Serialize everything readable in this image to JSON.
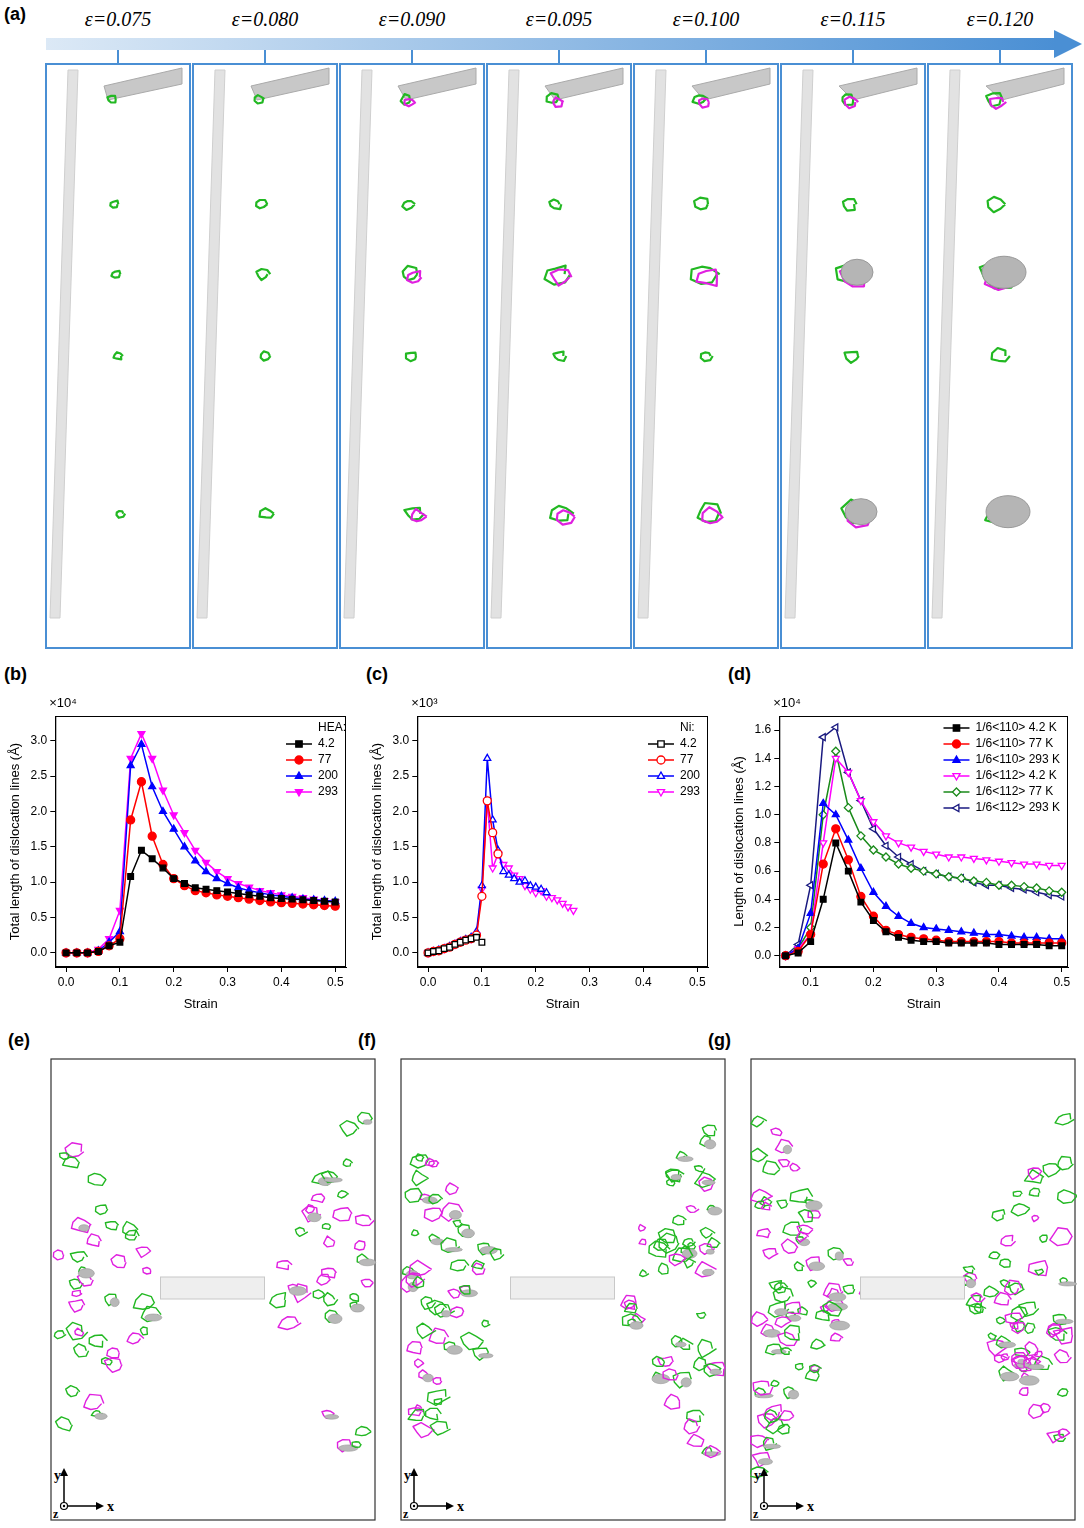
{
  "panel_a": {
    "label": "(a)",
    "strain_labels": [
      "ε=0.075",
      "ε=0.080",
      "ε=0.090",
      "ε=0.095",
      "ε=0.100",
      "ε=0.115",
      "ε=0.120"
    ]
  },
  "chart_data": [
    {
      "panel_label": "(b)",
      "type": "line",
      "x_label": "Strain",
      "y_label": "Total length of dislocation lines (Å)",
      "y_multiplier": "×10⁴",
      "legend_title": "HEA:",
      "legend": "upper right",
      "grid": false,
      "xlim": [
        -0.02,
        0.52
      ],
      "xticks": [
        {
          "value": 0,
          "label": "0.0"
        },
        {
          "value": 0.1,
          "label": "0.1"
        },
        {
          "value": 0.2,
          "label": "0.2"
        },
        {
          "value": 0.3,
          "label": "0.3"
        },
        {
          "value": 0.4,
          "label": "0.4"
        },
        {
          "value": 0.5,
          "label": "0.5"
        }
      ],
      "ylim": [
        -0.2,
        3.35
      ],
      "yticks": [
        {
          "value": 0,
          "label": "0.0"
        },
        {
          "value": 0.5,
          "label": "0.5"
        },
        {
          "value": 1,
          "label": "1.0"
        },
        {
          "value": 1.5,
          "label": "1.5"
        },
        {
          "value": 2,
          "label": "2.0"
        },
        {
          "value": 2.5,
          "label": "2.5"
        },
        {
          "value": 3,
          "label": "3.0"
        }
      ],
      "x": [
        0,
        0.02,
        0.04,
        0.06,
        0.08,
        0.1,
        0.12,
        0.14,
        0.16,
        0.18,
        0.2,
        0.22,
        0.24,
        0.26,
        0.28,
        0.3,
        0.32,
        0.34,
        0.36,
        0.38,
        0.4,
        0.42,
        0.44,
        0.46,
        0.48,
        0.5
      ],
      "series": [
        {
          "name": "4.2",
          "color": "#000000",
          "marker": "square",
          "values": [
            0,
            0,
            0,
            0.02,
            0.1,
            0.15,
            1.08,
            1.45,
            1.33,
            1.2,
            1.05,
            0.98,
            0.92,
            0.9,
            0.88,
            0.86,
            0.84,
            0.82,
            0.8,
            0.78,
            0.77,
            0.76,
            0.75,
            0.74,
            0.73,
            0.72
          ]
        },
        {
          "name": "77",
          "color": "#ff0000",
          "marker": "circle",
          "values": [
            0,
            0,
            0,
            0.02,
            0.1,
            0.2,
            1.88,
            2.42,
            1.65,
            1.25,
            1.05,
            0.95,
            0.88,
            0.85,
            0.82,
            0.8,
            0.78,
            0.76,
            0.74,
            0.72,
            0.71,
            0.7,
            0.69,
            0.68,
            0.67,
            0.66
          ]
        },
        {
          "name": "200",
          "color": "#0000ff",
          "marker": "triangle",
          "values": [
            0,
            0,
            0,
            0.03,
            0.15,
            0.3,
            2.65,
            2.95,
            2.35,
            2.0,
            1.75,
            1.5,
            1.3,
            1.15,
            1.05,
            0.98,
            0.92,
            0.88,
            0.85,
            0.82,
            0.8,
            0.78,
            0.76,
            0.75,
            0.74,
            0.73
          ]
        },
        {
          "name": "293",
          "color": "#ff00ff",
          "marker": "triangle-down",
          "values": [
            0,
            0,
            0,
            0.05,
            0.2,
            0.6,
            2.75,
            3.1,
            2.75,
            2.3,
            1.95,
            1.7,
            1.45,
            1.28,
            1.15,
            1.05,
            0.98,
            0.93,
            0.88,
            0.85,
            0.82,
            0.8,
            0.78,
            0.76,
            0.74,
            0.72
          ]
        }
      ]
    },
    {
      "panel_label": "(c)",
      "type": "line",
      "x_label": "Strain",
      "y_label": "Total length of dislocation lines (Å)",
      "y_multiplier": "×10³",
      "legend_title": "Ni:",
      "legend": "upper right",
      "grid": false,
      "xlim": [
        -0.02,
        0.52
      ],
      "xticks": [
        {
          "value": 0,
          "label": "0.0"
        },
        {
          "value": 0.1,
          "label": "0.1"
        },
        {
          "value": 0.2,
          "label": "0.2"
        },
        {
          "value": 0.3,
          "label": "0.3"
        },
        {
          "value": 0.4,
          "label": "0.4"
        },
        {
          "value": 0.5,
          "label": "0.5"
        }
      ],
      "ylim": [
        -0.2,
        3.35
      ],
      "yticks": [
        {
          "value": 0,
          "label": "0.0"
        },
        {
          "value": 0.5,
          "label": "0.5"
        },
        {
          "value": 1,
          "label": "1.0"
        },
        {
          "value": 1.5,
          "label": "1.5"
        },
        {
          "value": 2,
          "label": "2.0"
        },
        {
          "value": 2.5,
          "label": "2.5"
        },
        {
          "value": 3,
          "label": "3.0"
        }
      ],
      "series": [
        {
          "name": "4.2",
          "color": "#000000",
          "marker": "square-open",
          "x": [
            0,
            0.01,
            0.02,
            0.03,
            0.04,
            0.05,
            0.06,
            0.07,
            0.08,
            0.09,
            0.1
          ],
          "values": [
            0,
            0.02,
            0.03,
            0.06,
            0.08,
            0.12,
            0.15,
            0.18,
            0.2,
            0.22,
            0.15
          ]
        },
        {
          "name": "77",
          "color": "#ff0000",
          "marker": "circle-open",
          "x": [
            0,
            0.01,
            0.02,
            0.03,
            0.04,
            0.05,
            0.06,
            0.07,
            0.08,
            0.09,
            0.1,
            0.11,
            0.12,
            0.13
          ],
          "values": [
            0,
            0.02,
            0.03,
            0.06,
            0.08,
            0.12,
            0.15,
            0.18,
            0.2,
            0.25,
            0.8,
            2.15,
            1.7,
            1.4
          ]
        },
        {
          "name": "200",
          "color": "#0000ff",
          "marker": "triangle-open",
          "x": [
            0,
            0.01,
            0.02,
            0.03,
            0.04,
            0.05,
            0.06,
            0.07,
            0.08,
            0.09,
            0.1,
            0.11,
            0.12,
            0.13,
            0.14,
            0.15,
            0.16,
            0.17,
            0.18,
            0.19,
            0.2,
            0.21,
            0.22
          ],
          "values": [
            0,
            0.02,
            0.04,
            0.06,
            0.09,
            0.12,
            0.16,
            0.19,
            0.22,
            0.3,
            0.95,
            2.75,
            1.88,
            1.45,
            1.15,
            1.1,
            1.05,
            1.0,
            1.02,
            0.95,
            0.93,
            0.9,
            0.85
          ]
        },
        {
          "name": "293",
          "color": "#ff00ff",
          "marker": "triangle-down-open",
          "x": [
            0,
            0.01,
            0.02,
            0.03,
            0.04,
            0.05,
            0.06,
            0.07,
            0.08,
            0.09,
            0.1,
            0.11,
            0.12,
            0.13,
            0.14,
            0.15,
            0.16,
            0.17,
            0.18,
            0.19,
            0.2,
            0.21,
            0.22,
            0.23,
            0.24,
            0.25,
            0.26,
            0.27
          ],
          "values": [
            0,
            0.02,
            0.04,
            0.06,
            0.09,
            0.12,
            0.16,
            0.19,
            0.2,
            0.25,
            0.9,
            2.15,
            1.2,
            1.4,
            1.25,
            1.2,
            1.1,
            1.05,
            0.95,
            0.9,
            0.85,
            0.88,
            0.8,
            0.78,
            0.75,
            0.7,
            0.65,
            0.6
          ]
        }
      ]
    },
    {
      "panel_label": "(d)",
      "type": "line",
      "x_label": "Strain",
      "y_label": "Length of dislocation lines (Å)",
      "y_multiplier": "×10⁴",
      "legend": "upper right",
      "grid": false,
      "xlim": [
        0.05,
        0.51
      ],
      "xticks": [
        {
          "value": 0.1,
          "label": "0.1"
        },
        {
          "value": 0.2,
          "label": "0.2"
        },
        {
          "value": 0.3,
          "label": "0.3"
        },
        {
          "value": 0.4,
          "label": "0.4"
        },
        {
          "value": 0.5,
          "label": "0.5"
        }
      ],
      "ylim": [
        -0.08,
        1.7
      ],
      "yticks": [
        {
          "value": 0,
          "label": "0.0"
        },
        {
          "value": 0.2,
          "label": "0.2"
        },
        {
          "value": 0.4,
          "label": "0.4"
        },
        {
          "value": 0.6,
          "label": "0.6"
        },
        {
          "value": 0.8,
          "label": "0.8"
        },
        {
          "value": 1,
          "label": "1.0"
        },
        {
          "value": 1.2,
          "label": "1.2"
        },
        {
          "value": 1.4,
          "label": "1.4"
        },
        {
          "value": 1.6,
          "label": "1.6"
        }
      ],
      "x": [
        0.06,
        0.08,
        0.1,
        0.12,
        0.14,
        0.16,
        0.18,
        0.2,
        0.22,
        0.24,
        0.26,
        0.28,
        0.3,
        0.32,
        0.34,
        0.36,
        0.38,
        0.4,
        0.42,
        0.44,
        0.46,
        0.48,
        0.5
      ],
      "series": [
        {
          "name": "1/6<110> 4.2 K",
          "color": "#000000",
          "marker": "square",
          "values": [
            0,
            0.02,
            0.1,
            0.4,
            0.8,
            0.6,
            0.38,
            0.25,
            0.17,
            0.13,
            0.11,
            0.1,
            0.1,
            0.09,
            0.09,
            0.09,
            0.09,
            0.08,
            0.08,
            0.08,
            0.08,
            0.07,
            0.07
          ]
        },
        {
          "name": "1/6<110> 77 K",
          "color": "#ff0000",
          "marker": "circle",
          "values": [
            0,
            0.03,
            0.15,
            0.65,
            0.9,
            0.68,
            0.42,
            0.28,
            0.18,
            0.15,
            0.13,
            0.12,
            0.11,
            0.1,
            0.1,
            0.1,
            0.1,
            0.1,
            0.09,
            0.09,
            0.09,
            0.09,
            0.09
          ]
        },
        {
          "name": "1/6<110> 293 K",
          "color": "#0000ff",
          "marker": "triangle",
          "values": [
            0,
            0.05,
            0.3,
            1.08,
            1.0,
            0.82,
            0.62,
            0.45,
            0.35,
            0.28,
            0.23,
            0.2,
            0.19,
            0.18,
            0.17,
            0.16,
            0.15,
            0.15,
            0.14,
            0.13,
            0.13,
            0.12,
            0.12
          ]
        },
        {
          "name": "1/6<112> 4.2 K",
          "color": "#ff00ff",
          "marker": "triangle-down-open",
          "values": [
            0,
            0.05,
            0.15,
            0.8,
            1.4,
            1.3,
            1.1,
            0.95,
            0.85,
            0.8,
            0.77,
            0.74,
            0.72,
            0.7,
            0.7,
            0.69,
            0.68,
            0.67,
            0.66,
            0.65,
            0.65,
            0.64,
            0.64
          ]
        },
        {
          "name": "1/6<112> 77 K",
          "color": "#1a8a1a",
          "marker": "diamond-open",
          "values": [
            0,
            0.05,
            0.2,
            1.0,
            1.45,
            1.05,
            0.85,
            0.75,
            0.7,
            0.65,
            0.62,
            0.6,
            0.58,
            0.56,
            0.55,
            0.53,
            0.52,
            0.5,
            0.5,
            0.49,
            0.48,
            0.46,
            0.45
          ]
        },
        {
          "name": "1/6<112> 293 K",
          "color": "#1a1a80",
          "marker": "triangle-left-open",
          "values": [
            0,
            0.08,
            0.5,
            1.55,
            1.62,
            1.3,
            1.1,
            0.9,
            0.78,
            0.7,
            0.65,
            0.6,
            0.58,
            0.56,
            0.55,
            0.52,
            0.5,
            0.5,
            0.48,
            0.47,
            0.45,
            0.43,
            0.42
          ]
        }
      ]
    }
  ],
  "panels_efg": [
    {
      "label": "(e)",
      "axis_labels": {
        "x": "x",
        "y": "y",
        "z": "z"
      }
    },
    {
      "label": "(f)",
      "axis_labels": {
        "x": "x",
        "y": "y",
        "z": "z"
      }
    },
    {
      "label": "(g)",
      "axis_labels": {
        "x": "x",
        "y": "y",
        "z": "z"
      }
    }
  ]
}
